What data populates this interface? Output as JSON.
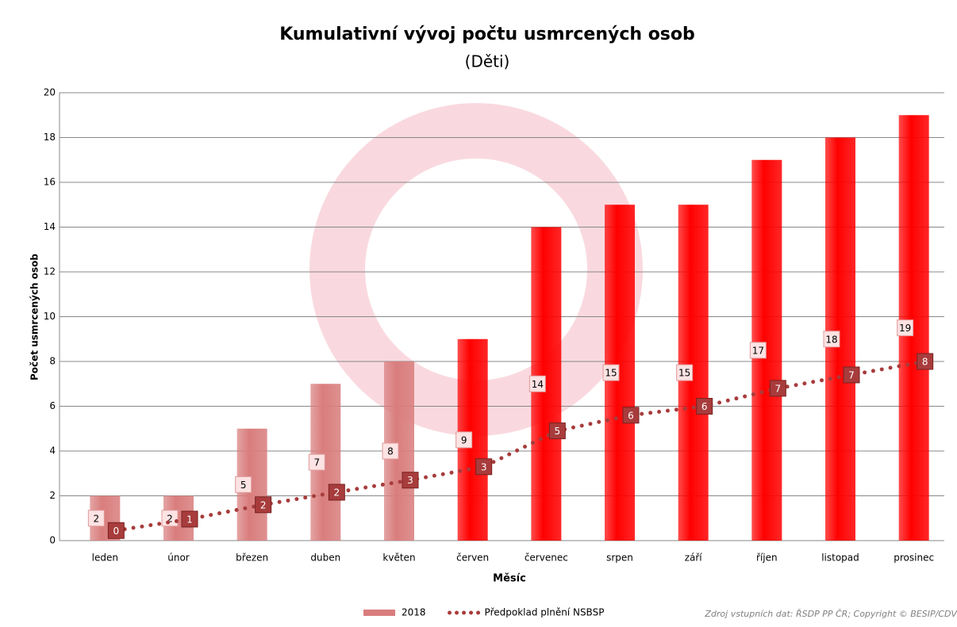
{
  "chart_data": {
    "type": "bar",
    "title": "Kumulativní vývoj počtu usmrcených osob",
    "subtitle": "(Děti)",
    "y_label": "Počet usmrcených osob",
    "x_label": "Měsíc",
    "source": "Zdroj vstupních dat: ŘSDP PP ČR; Copyright © BESIP/CDV",
    "categories": [
      "leden",
      "únor",
      "březen",
      "duben",
      "květen",
      "červen",
      "červenec",
      "srpen",
      "září",
      "říjen",
      "listopad",
      "prosinec"
    ],
    "series": [
      {
        "name": "2018",
        "type": "bar",
        "color": "#d97d7d",
        "colors": [
          "#d97d7d",
          "#d97d7d",
          "#d97d7d",
          "#d97d7d",
          "#d97d7d",
          "#ff0000",
          "#ff0000",
          "#ff0000",
          "#ff0000",
          "#ff0000",
          "#ff0000",
          "#ff0000"
        ],
        "values": [
          2,
          2,
          5,
          7,
          8,
          9,
          14,
          15,
          15,
          17,
          18,
          19
        ]
      },
      {
        "name": "Předpoklad plnění NSBSP",
        "type": "line",
        "color": "#a83c3c",
        "values": [
          0.45,
          0.96,
          1.6,
          2.16,
          2.7,
          3.3,
          4.9,
          5.6,
          6.0,
          6.8,
          7.4,
          8.0
        ],
        "value_labels": [
          "0",
          "1",
          "2",
          "2",
          "3",
          "3",
          "5",
          "6",
          "6",
          "7",
          "7",
          "8"
        ]
      }
    ],
    "ylim": [
      0,
      20
    ],
    "yticks": [
      0,
      2,
      4,
      6,
      8,
      10,
      12,
      14,
      16,
      18,
      20
    ],
    "grid": true,
    "legend": "bottom"
  }
}
